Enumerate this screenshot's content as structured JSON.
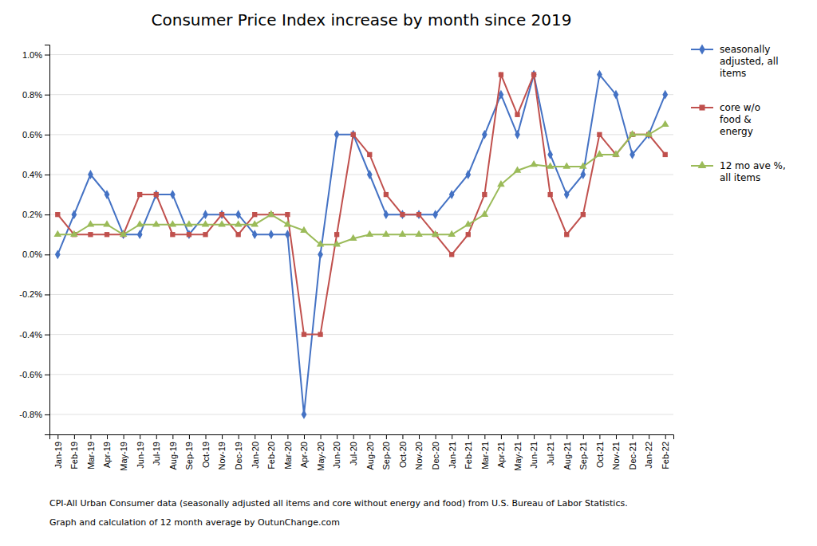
{
  "chart_data": {
    "type": "line",
    "title": "Consumer Price Index increase by month since 2019",
    "annotations": [
      "CPI-All Urban Consumer data (seasonally adjusted all items and core without energy and food) from U.S. Bureau of Labor Statistics.",
      "Graph and calculation of 12 month average  by OutunChange.com"
    ],
    "categories": [
      "Jan-19",
      "Feb-19",
      "Mar-19",
      "Apr-19",
      "May-19",
      "Jun-19",
      "Jul-19",
      "Aug-19",
      "Sep-19",
      "Oct-19",
      "Nov-19",
      "Dec-19",
      "Jan-20",
      "Feb-20",
      "Mar-20",
      "Apr-20",
      "May-20",
      "Jun-20",
      "Jul-20",
      "Aug-20",
      "Sep-20",
      "Oct-20",
      "Nov-20",
      "Dec-20",
      "Jan-21",
      "Feb-21",
      "Mar-21",
      "Apr-21",
      "May-21",
      "Jun-21",
      "Jul-21",
      "Aug-21",
      "Sep-21",
      "Oct-21",
      "Nov-21",
      "Dec-21",
      "Jan-22",
      "Feb-22"
    ],
    "series": [
      {
        "name": "seasonally\nadjusted, all\nitems",
        "color": "#4472C4",
        "marker": "diamond",
        "values": [
          0.0,
          0.2,
          0.4,
          0.3,
          0.1,
          0.1,
          0.3,
          0.3,
          0.1,
          0.2,
          0.2,
          0.2,
          0.1,
          0.1,
          0.1,
          -0.8,
          0.0,
          0.6,
          0.6,
          0.4,
          0.2,
          0.2,
          0.2,
          0.2,
          0.3,
          0.4,
          0.6,
          0.8,
          0.6,
          0.9,
          0.5,
          0.3,
          0.4,
          0.9,
          0.8,
          0.5,
          0.6,
          0.8
        ]
      },
      {
        "name": "core w/o\nfood &\nenergy",
        "color": "#C0504D",
        "marker": "square",
        "values": [
          0.2,
          0.1,
          0.1,
          0.1,
          0.1,
          0.3,
          0.3,
          0.1,
          0.1,
          0.1,
          0.2,
          0.1,
          0.2,
          0.2,
          0.2,
          -0.4,
          -0.4,
          0.1,
          0.6,
          0.5,
          0.3,
          0.2,
          0.2,
          0.1,
          0.0,
          0.1,
          0.3,
          0.9,
          0.7,
          0.9,
          0.3,
          0.1,
          0.2,
          0.6,
          0.5,
          0.6,
          0.6,
          0.5
        ]
      },
      {
        "name": "12 mo ave %,\nall items",
        "color": "#9BBB59",
        "marker": "triangle",
        "values": [
          0.1,
          0.1,
          0.15,
          0.15,
          0.1,
          0.15,
          0.15,
          0.15,
          0.15,
          0.15,
          0.15,
          0.15,
          0.15,
          0.2,
          0.15,
          0.12,
          0.05,
          0.05,
          0.08,
          0.1,
          0.1,
          0.1,
          0.1,
          0.1,
          0.1,
          0.15,
          0.2,
          0.35,
          0.42,
          0.45,
          0.44,
          0.44,
          0.44,
          0.5,
          0.5,
          0.6,
          0.6,
          0.65
        ]
      }
    ],
    "ylim": [
      -0.9,
      1.05
    ],
    "yticks": [
      {
        "value": -0.8,
        "label": "-0.8%"
      },
      {
        "value": -0.6,
        "label": "-0.6%"
      },
      {
        "value": -0.4,
        "label": "-0.4%"
      },
      {
        "value": -0.2,
        "label": "-0.2%"
      },
      {
        "value": 0.0,
        "label": "0.0%"
      },
      {
        "value": 0.2,
        "label": "0.2%"
      },
      {
        "value": 0.4,
        "label": "0.4%"
      },
      {
        "value": 0.6,
        "label": "0.6%"
      },
      {
        "value": 0.8,
        "label": "0.8%"
      },
      {
        "value": 1.0,
        "label": "1.0%"
      }
    ],
    "grid": true,
    "legend": "right"
  }
}
